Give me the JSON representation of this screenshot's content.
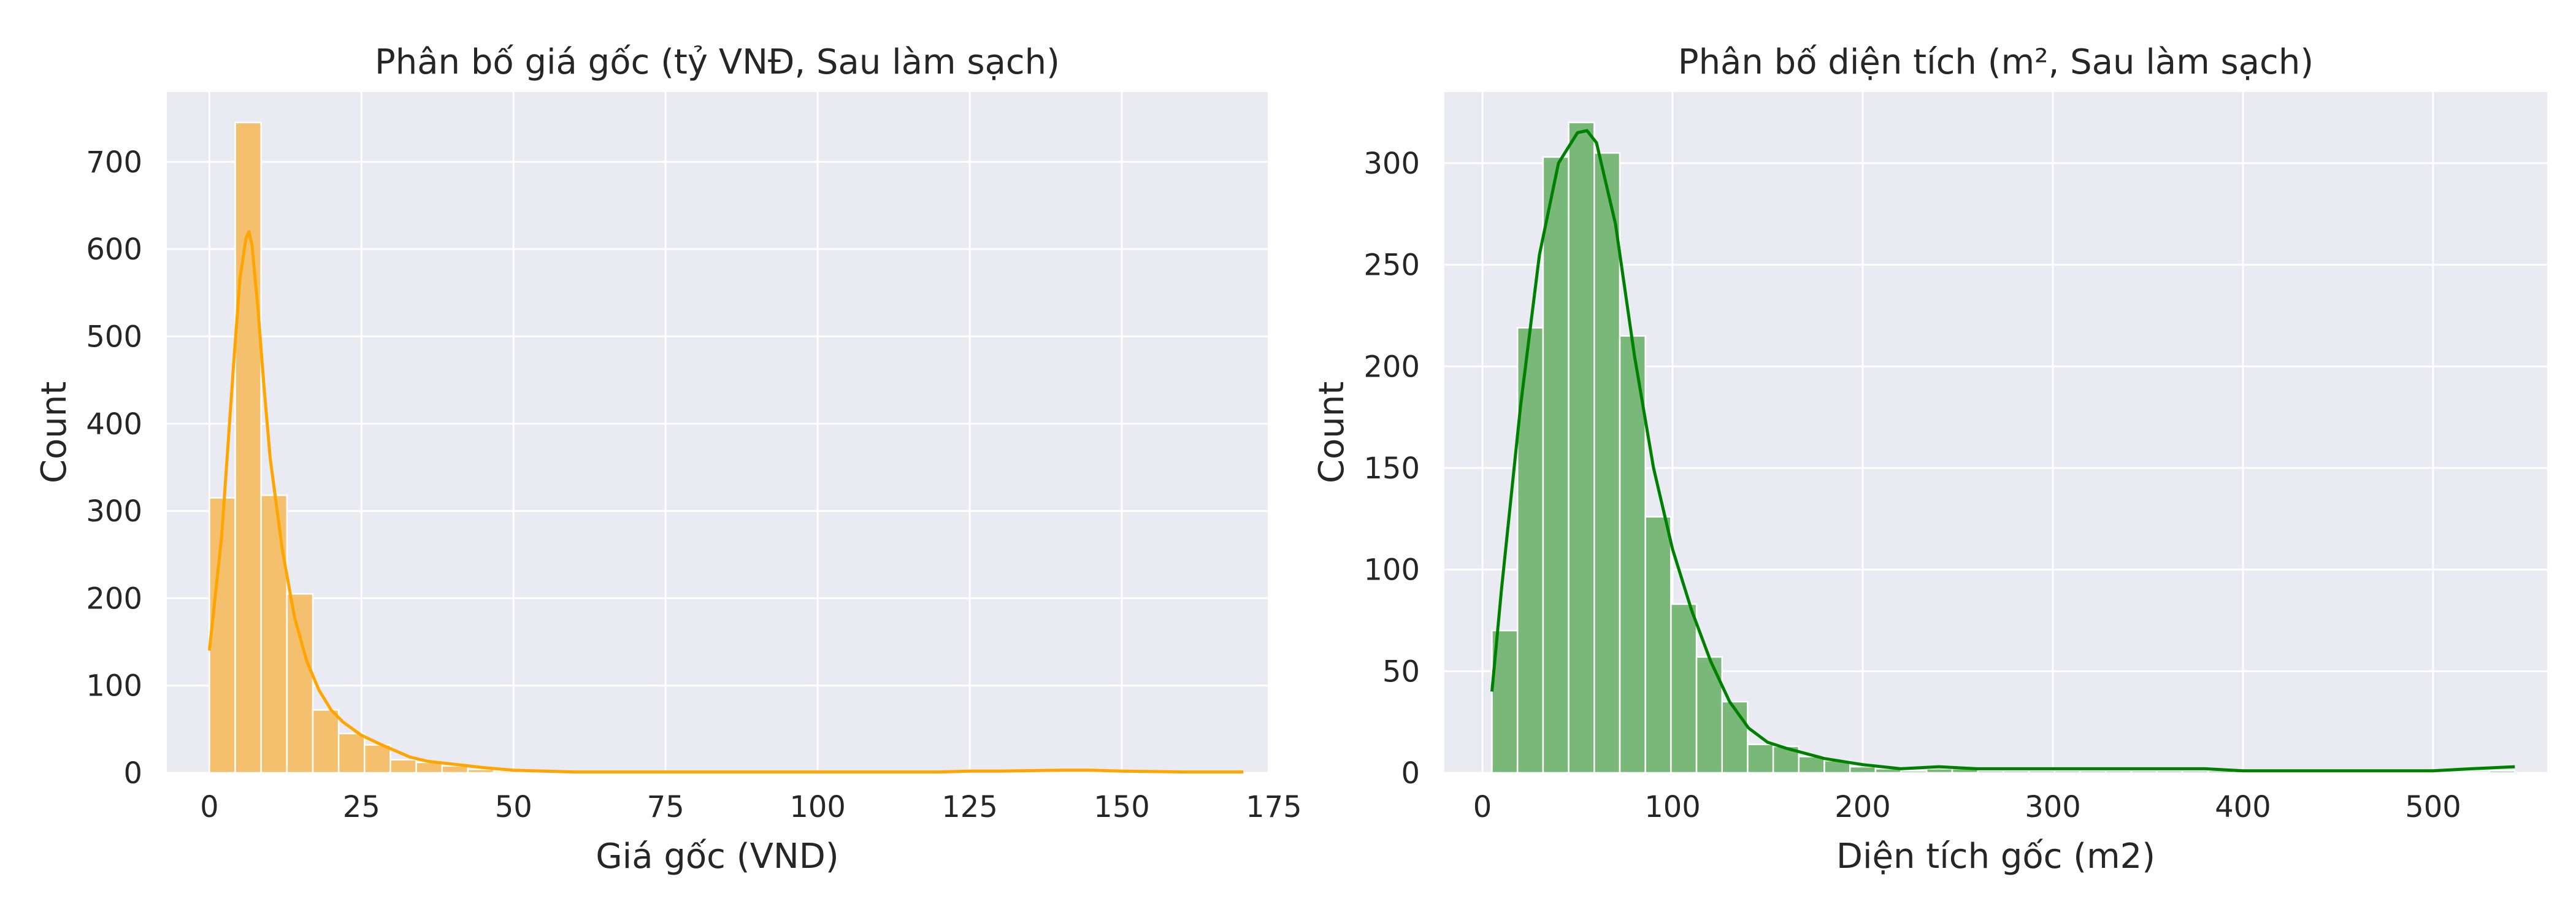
{
  "chart_data": [
    {
      "type": "bar",
      "subtype": "histogram-with-kde",
      "title": "Phân bố giá gốc (tỷ VNĐ, Sau làm sạch)",
      "xlabel": "Giá gốc (VND)",
      "ylabel": "Count",
      "xlim": [
        -7,
        174
      ],
      "ylim": [
        0,
        780
      ],
      "xticks": [
        0,
        25,
        50,
        75,
        100,
        125,
        150,
        175
      ],
      "yticks": [
        0,
        100,
        200,
        300,
        400,
        500,
        600,
        700
      ],
      "grid": true,
      "bar_color": "#f5c06e",
      "line_color": "#ffa500",
      "bin_edges": [
        0,
        4.25,
        8.5,
        12.75,
        17,
        21.25,
        25.5,
        29.75,
        34,
        38.25,
        42.5,
        46.75,
        51,
        55.25,
        59.5,
        63.75,
        68,
        72.25,
        76.5,
        80.75,
        85,
        89.25,
        93.5,
        97.75,
        102,
        106.25,
        110.5,
        114.75,
        119,
        123.25,
        127.5,
        131.75,
        136,
        140.25,
        144.5,
        148.75,
        153,
        157.25,
        161.5,
        165.75,
        170
      ],
      "values": [
        315,
        745,
        318,
        205,
        72,
        45,
        32,
        15,
        12,
        8,
        4,
        2,
        1,
        1,
        1,
        1,
        0,
        0,
        1,
        0,
        1,
        0,
        0,
        1,
        0,
        0,
        0,
        0,
        0,
        1,
        0,
        1,
        0,
        0,
        1,
        0,
        0,
        0,
        0,
        1
      ],
      "kde": {
        "x": [
          0,
          2,
          4,
          5,
          6,
          6.5,
          7,
          8,
          9,
          10,
          12,
          14,
          16,
          18,
          20,
          22,
          25,
          28,
          30,
          33,
          36,
          40,
          45,
          50,
          55,
          60,
          70,
          80,
          90,
          100,
          110,
          120,
          125,
          130,
          140,
          145,
          150,
          160,
          170
        ],
        "y": [
          140,
          270,
          470,
          565,
          612,
          620,
          605,
          530,
          440,
          360,
          255,
          178,
          128,
          95,
          72,
          58,
          43,
          33,
          27,
          18,
          13,
          10,
          6,
          3,
          2,
          1,
          1,
          1,
          1,
          1,
          1,
          1,
          2,
          2,
          3,
          3,
          2,
          1,
          1
        ]
      }
    },
    {
      "type": "bar",
      "subtype": "histogram-with-kde",
      "title": "Phân bố diện tích (m², Sau làm sạch)",
      "xlabel": "Diện tích gốc (m2)",
      "ylabel": "Count",
      "xlim": [
        -20,
        560
      ],
      "ylim": [
        0,
        335
      ],
      "xticks": [
        0,
        100,
        200,
        300,
        400,
        500
      ],
      "yticks": [
        0,
        50,
        100,
        150,
        200,
        250,
        300
      ],
      "grid": true,
      "bar_color": "#7ab87a",
      "line_color": "#008000",
      "bin_edges": [
        5,
        18.45,
        31.9,
        45.35,
        58.8,
        72.25,
        85.7,
        99.15,
        112.6,
        126.05,
        139.5,
        152.95,
        166.4,
        179.85,
        193.3,
        206.75,
        220.2,
        233.65,
        247.1,
        260.55,
        274,
        287.45,
        300.9,
        314.35,
        327.8,
        341.25,
        354.7,
        368.15,
        381.6,
        395.05,
        408.5,
        421.95,
        435.4,
        448.85,
        462.3,
        475.75,
        489.2,
        502.65,
        516.1,
        529.55,
        543
      ],
      "values": [
        70,
        219,
        303,
        320,
        305,
        215,
        126,
        83,
        57,
        35,
        14,
        13,
        8,
        6,
        3,
        2,
        1,
        2,
        2,
        1,
        1,
        1,
        1,
        1,
        1,
        1,
        1,
        1,
        1,
        1,
        0,
        1,
        0,
        0,
        0,
        0,
        0,
        0,
        0,
        1
      ],
      "kde": {
        "x": [
          5,
          10,
          20,
          30,
          40,
          50,
          55,
          60,
          70,
          80,
          90,
          100,
          110,
          120,
          130,
          140,
          150,
          160,
          180,
          200,
          220,
          240,
          260,
          280,
          300,
          320,
          350,
          380,
          400,
          420,
          450,
          480,
          500,
          520,
          543
        ],
        "y": [
          40,
          90,
          180,
          255,
          300,
          315,
          316,
          310,
          270,
          205,
          150,
          110,
          80,
          55,
          35,
          22,
          15,
          12,
          7,
          4,
          2,
          3,
          2,
          2,
          2,
          2,
          2,
          2,
          1,
          1,
          1,
          1,
          1,
          2,
          3
        ]
      }
    }
  ]
}
